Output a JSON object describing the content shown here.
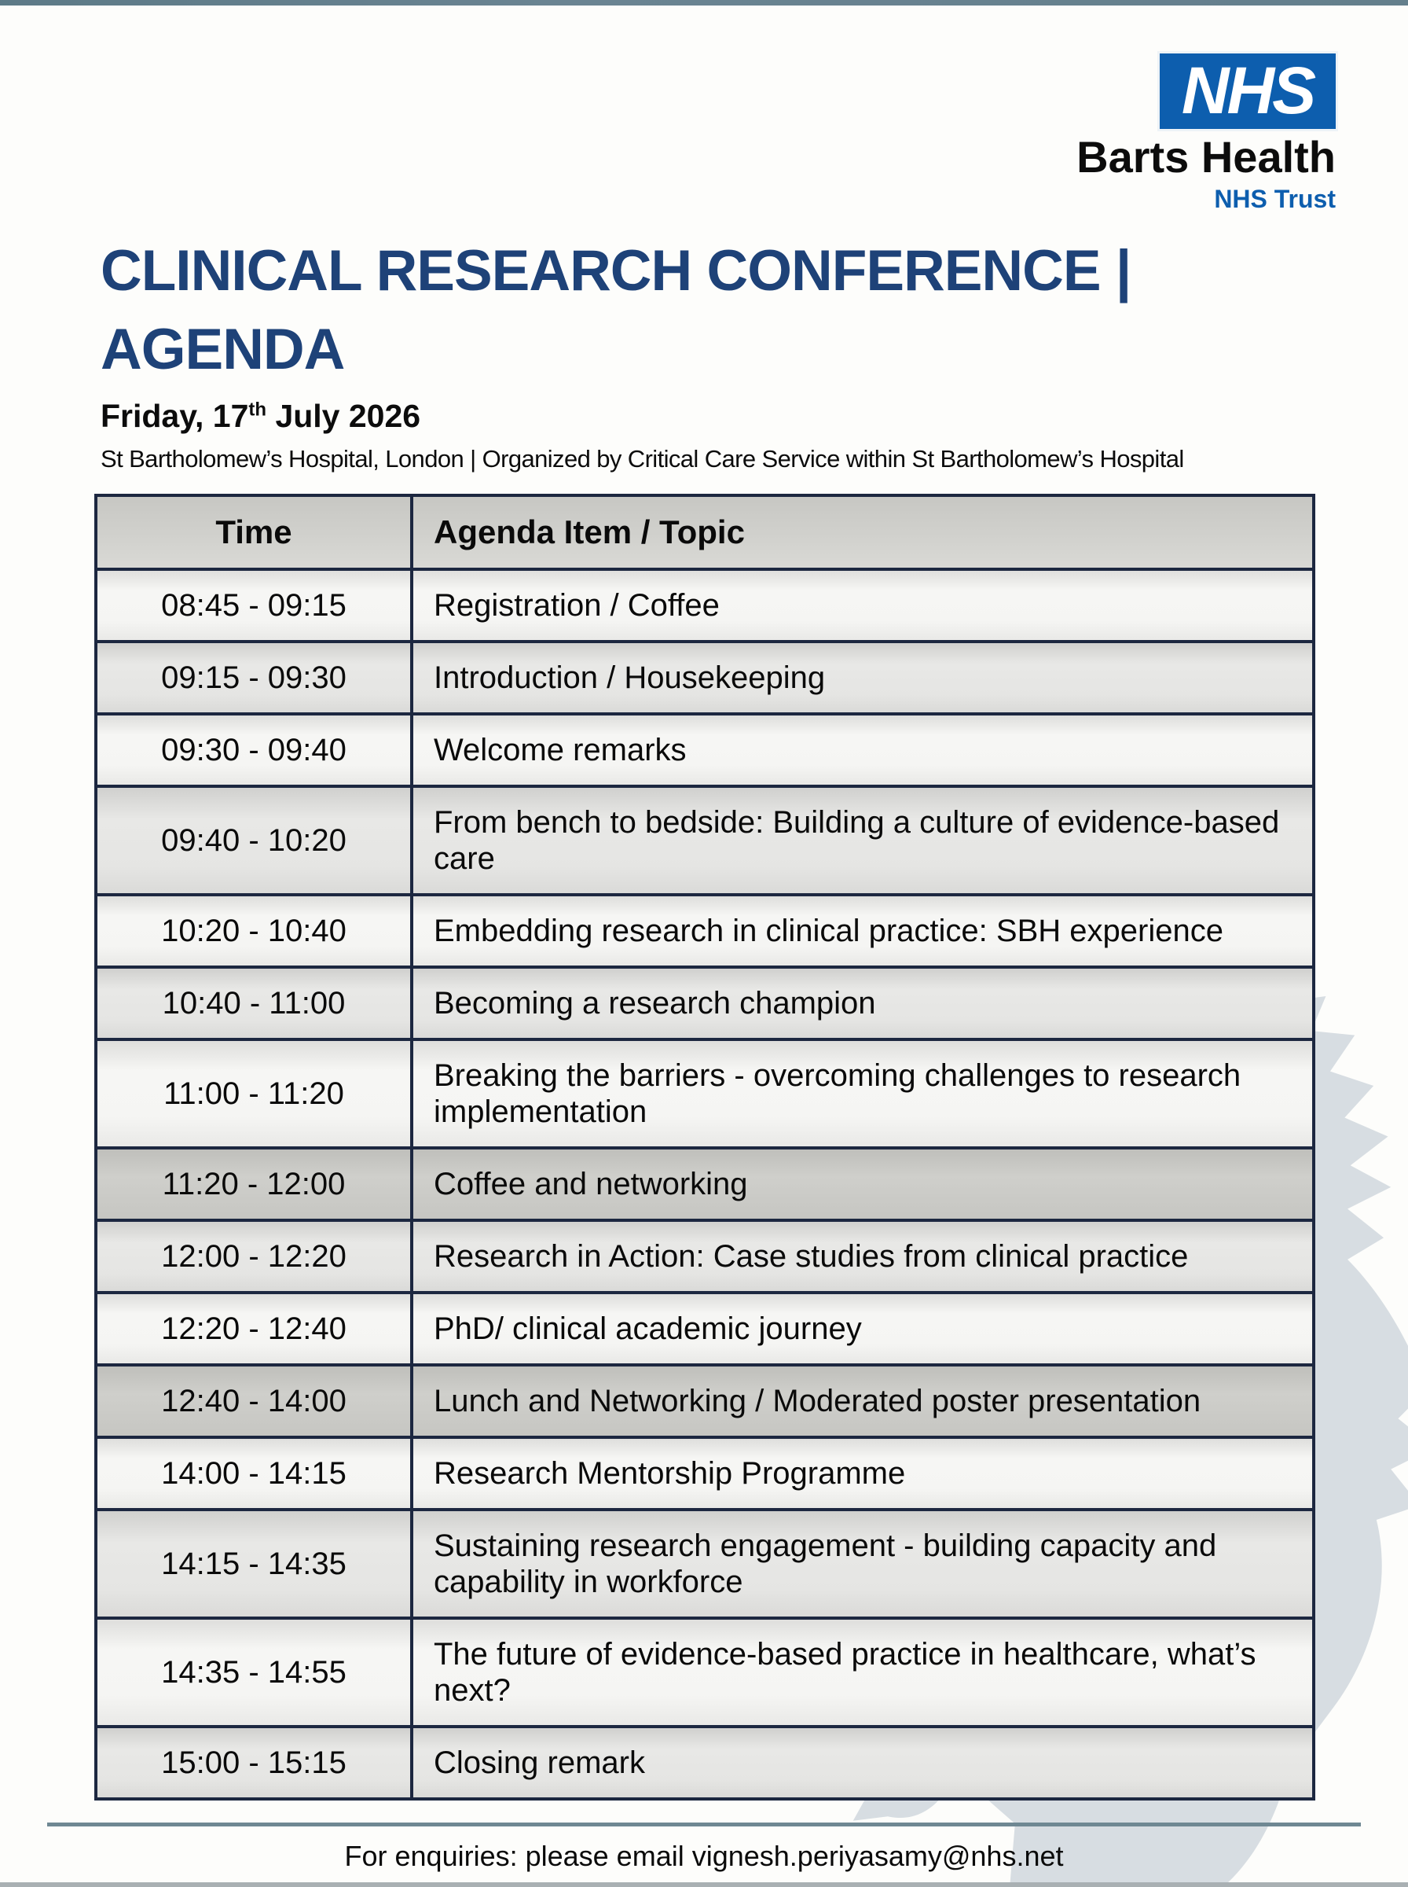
{
  "logo": {
    "nhs": "NHS",
    "org": "Barts Health",
    "sub": "NHS Trust",
    "nhs_blue": "#0d5eae"
  },
  "header": {
    "title_line1": "CLINICAL RESEARCH CONFERENCE |",
    "title_line2": "AGENDA",
    "title_color": "#1e4278",
    "date_prefix": "Friday, 17",
    "date_super": "th",
    "date_suffix": " July 2026",
    "subtitle": "St Bartholomew’s Hospital, London | Organized by Critical Care Service within St Bartholomew’s Hospital"
  },
  "table": {
    "headers": [
      "Time",
      "Agenda Item / Topic"
    ],
    "rows": [
      {
        "time": "08:45 - 09:15",
        "topic": "Registration / Coffee",
        "shade": "light"
      },
      {
        "time": "09:15 - 09:30",
        "topic": "Introduction / Housekeeping",
        "shade": "mid"
      },
      {
        "time": "09:30 - 09:40",
        "topic": "Welcome remarks",
        "shade": "light"
      },
      {
        "time": "09:40 - 10:20",
        "topic": "From bench to bedside: Building a culture of evidence-based care",
        "shade": "mid"
      },
      {
        "time": "10:20 - 10:40",
        "topic": "Embedding research in clinical practice: SBH experience",
        "shade": "light"
      },
      {
        "time": "10:40 - 11:00",
        "topic": "Becoming a research champion",
        "shade": "mid"
      },
      {
        "time": "11:00 - 11:20",
        "topic": "Breaking the barriers - overcoming challenges to research implementation",
        "shade": "light"
      },
      {
        "time": "11:20 - 12:00",
        "topic": "Coffee and networking",
        "shade": "break"
      },
      {
        "time": "12:00 - 12:20",
        "topic": "Research in Action: Case studies from clinical practice",
        "shade": "mid"
      },
      {
        "time": "12:20 - 12:40",
        "topic": "PhD/ clinical academic journey",
        "shade": "light"
      },
      {
        "time": "12:40 - 14:00",
        "topic": "Lunch and Networking / Moderated poster presentation",
        "shade": "break"
      },
      {
        "time": "14:00 - 14:15",
        "topic": "Research Mentorship Programme",
        "shade": "light"
      },
      {
        "time": "14:15 - 14:35",
        "topic": "Sustaining research engagement - building capacity and capability in workforce",
        "shade": "mid"
      },
      {
        "time": "14:35 - 14:55",
        "topic": "The future of evidence-based practice in healthcare, what’s next?",
        "shade": "light"
      },
      {
        "time": "15:00 - 15:15",
        "topic": "Closing remark",
        "shade": "mid"
      }
    ]
  },
  "footer": {
    "enquiries": "For enquiries: please email vignesh.periyasamy@nhs.net"
  }
}
